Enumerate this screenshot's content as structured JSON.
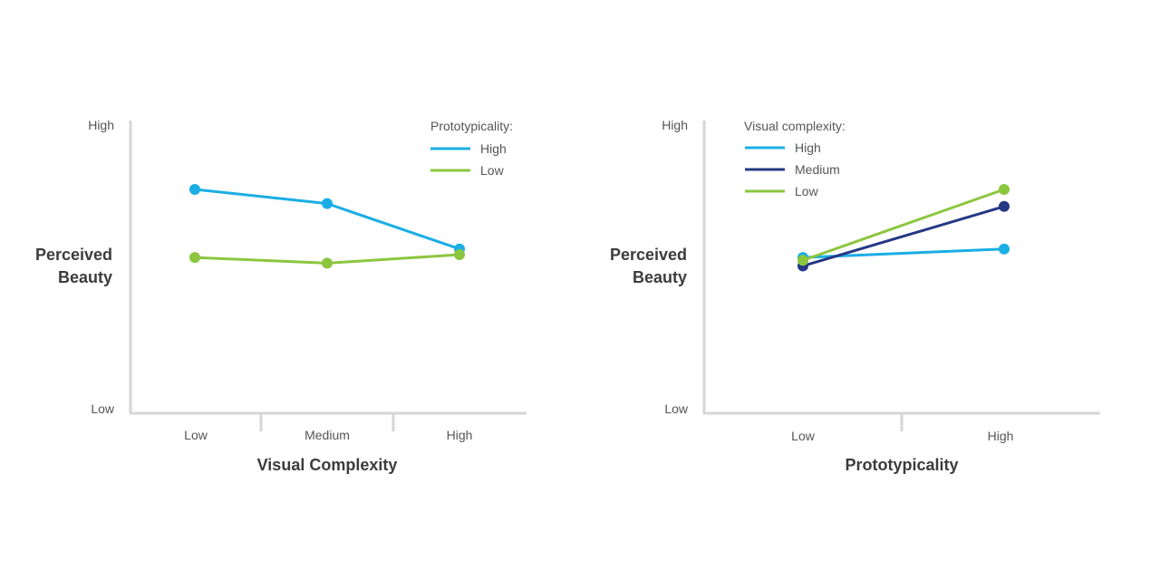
{
  "chart_data": [
    {
      "type": "line",
      "xlabel": "Visual Complexity",
      "ylabel": [
        "Perceived",
        "Beauty"
      ],
      "categories": [
        "Low",
        "Medium",
        "High"
      ],
      "y_ticks": {
        "top": "High",
        "bottom": "Low"
      },
      "ylim": [
        0,
        100
      ],
      "grid": false,
      "legend": {
        "title": "Prototypicality:",
        "placement": "top-right"
      },
      "series": [
        {
          "name": "High",
          "color": "#1aaee5",
          "values": [
            77,
            72,
            56
          ]
        },
        {
          "name": "Low",
          "color": "#8cc63f",
          "values": [
            53,
            51,
            54
          ]
        }
      ]
    },
    {
      "type": "line",
      "xlabel": "Prototypicality",
      "ylabel": [
        "Perceived",
        "Beauty"
      ],
      "categories": [
        "Low",
        "High"
      ],
      "y_ticks": {
        "top": "High",
        "bottom": "Low"
      },
      "ylim": [
        0,
        100
      ],
      "grid": false,
      "legend": {
        "title": "Visual complexity:",
        "placement": "top-left"
      },
      "series": [
        {
          "name": "High",
          "color": "#1aaee5",
          "values": [
            53,
            56
          ]
        },
        {
          "name": "Medium",
          "color": "#253885",
          "values": [
            50,
            71
          ]
        },
        {
          "name": "Low",
          "color": "#8cc63f",
          "values": [
            52,
            77
          ]
        }
      ]
    }
  ]
}
